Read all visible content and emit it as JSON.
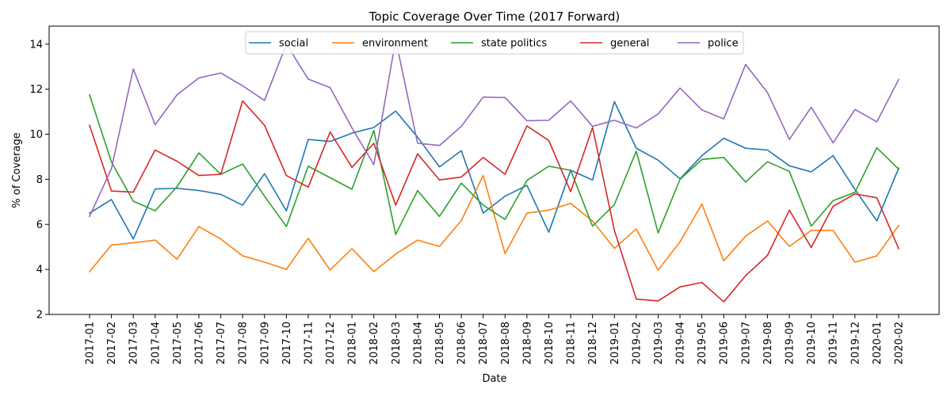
{
  "chart_data": {
    "type": "line",
    "title": "Topic Coverage Over Time (2017 Forward)",
    "xlabel": "Date",
    "ylabel": "% of Coverage",
    "ylim": [
      2,
      14.8
    ],
    "yticks": [
      2,
      4,
      6,
      8,
      10,
      12,
      14
    ],
    "grid": false,
    "legend": "top-center",
    "categories": [
      "2017-01",
      "2017-02",
      "2017-03",
      "2017-04",
      "2017-05",
      "2017-06",
      "2017-07",
      "2017-08",
      "2017-09",
      "2017-10",
      "2017-11",
      "2017-12",
      "2018-01",
      "2018-02",
      "2018-03",
      "2018-04",
      "2018-05",
      "2018-06",
      "2018-07",
      "2018-08",
      "2018-09",
      "2018-10",
      "2018-11",
      "2018-12",
      "2019-01",
      "2019-02",
      "2019-03",
      "2019-04",
      "2019-05",
      "2019-06",
      "2019-07",
      "2019-08",
      "2019-09",
      "2019-10",
      "2019-11",
      "2019-12",
      "2020-01",
      "2020-02"
    ],
    "series": [
      {
        "name": "social",
        "color": "#1f77b4",
        "values": [
          6.5,
          7.1,
          5.35,
          7.57,
          7.6,
          7.5,
          7.33,
          6.85,
          8.25,
          6.6,
          9.77,
          9.68,
          10.05,
          10.3,
          11.03,
          9.87,
          8.55,
          9.27,
          6.5,
          7.25,
          7.73,
          5.65,
          8.4,
          7.97,
          11.45,
          9.38,
          8.85,
          8.02,
          9.05,
          9.82,
          9.38,
          9.3,
          8.6,
          8.33,
          9.05,
          7.55,
          6.15,
          8.5
        ]
      },
      {
        "name": "environment",
        "color": "#ff7f0e",
        "values": [
          3.9,
          5.08,
          5.18,
          5.3,
          4.45,
          5.9,
          5.35,
          4.6,
          4.32,
          4.0,
          5.38,
          3.97,
          4.92,
          3.9,
          4.68,
          5.3,
          5.02,
          6.17,
          8.17,
          4.7,
          6.5,
          6.63,
          6.93,
          6.15,
          4.93,
          5.8,
          3.97,
          5.22,
          6.9,
          4.38,
          5.47,
          6.15,
          5.02,
          5.73,
          5.73,
          4.32,
          4.6,
          5.95
        ]
      },
      {
        "name": "state politics",
        "color": "#2ca02c",
        "values": [
          11.75,
          8.77,
          7.03,
          6.6,
          7.67,
          9.17,
          8.22,
          8.68,
          7.25,
          5.9,
          8.58,
          8.07,
          7.56,
          10.17,
          5.55,
          7.5,
          6.35,
          7.83,
          6.85,
          6.22,
          7.95,
          8.58,
          8.4,
          5.92,
          6.88,
          9.25,
          5.62,
          8.0,
          8.88,
          8.97,
          7.88,
          8.78,
          8.35,
          5.92,
          7.05,
          7.42,
          9.4,
          8.45
        ]
      },
      {
        "name": "general",
        "color": "#d62728",
        "values": [
          10.4,
          7.48,
          7.43,
          9.3,
          8.8,
          8.17,
          8.22,
          11.48,
          10.4,
          8.17,
          7.65,
          10.1,
          8.53,
          9.6,
          6.85,
          9.13,
          7.97,
          8.1,
          8.97,
          8.22,
          10.37,
          9.72,
          7.45,
          10.3,
          5.73,
          2.68,
          2.6,
          3.22,
          3.42,
          2.56,
          3.72,
          4.62,
          6.63,
          4.97,
          6.8,
          7.35,
          7.18,
          4.92
        ]
      },
      {
        "name": "police",
        "color": "#9467bd",
        "values": [
          6.35,
          8.47,
          12.9,
          10.42,
          11.75,
          12.5,
          12.72,
          12.15,
          11.5,
          14.0,
          12.45,
          12.07,
          10.28,
          8.65,
          14.2,
          9.6,
          9.5,
          10.35,
          11.65,
          11.63,
          10.6,
          10.62,
          11.48,
          10.35,
          10.62,
          10.28,
          10.9,
          12.05,
          11.08,
          10.68,
          13.1,
          11.85,
          9.77,
          11.2,
          9.62,
          11.1,
          10.55,
          12.43
        ]
      }
    ]
  }
}
